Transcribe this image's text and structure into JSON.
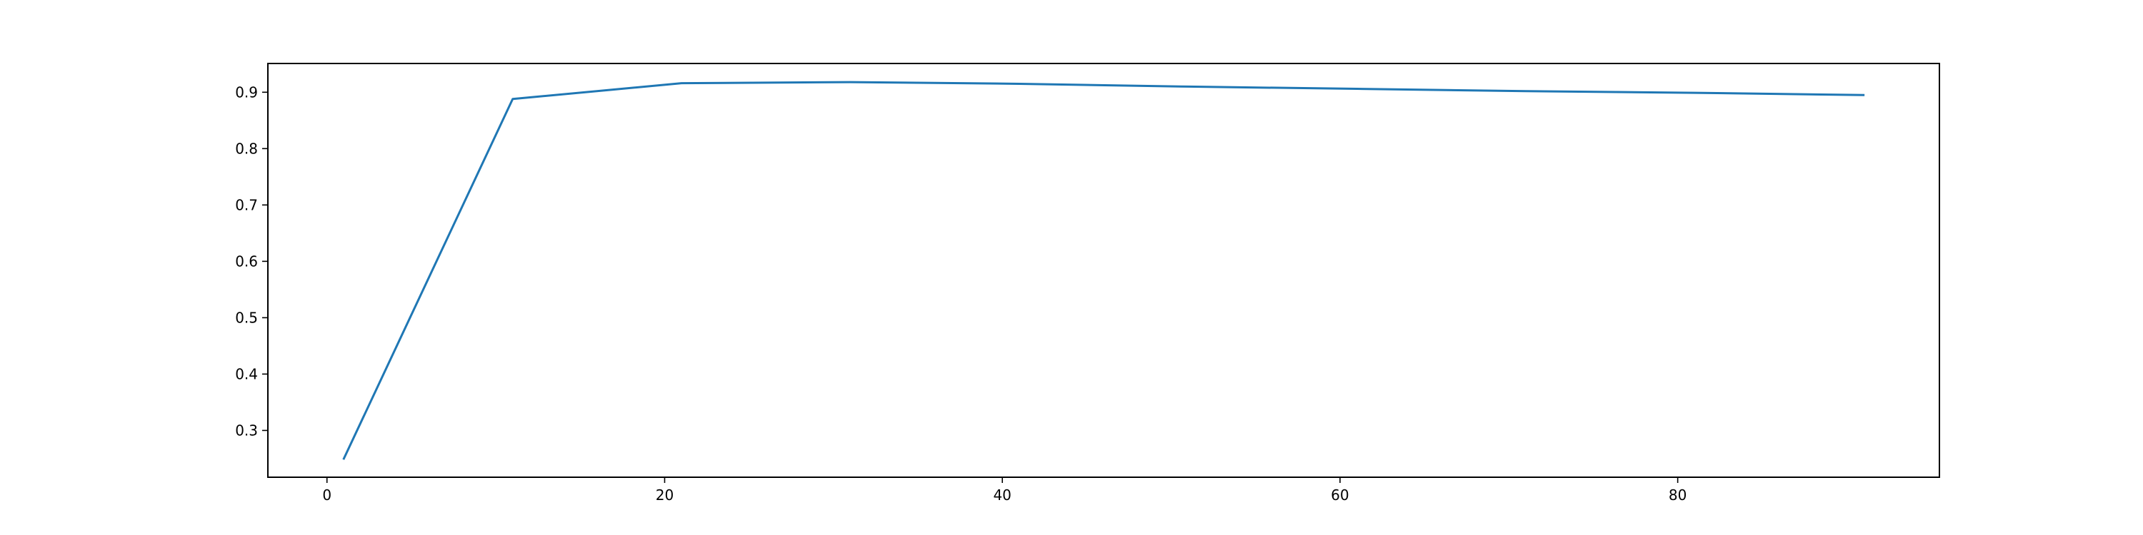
{
  "chart_data": {
    "type": "line",
    "title": "",
    "xlabel": "",
    "ylabel": "",
    "x": [
      1,
      11,
      21,
      31,
      41,
      51,
      61,
      71,
      81,
      91
    ],
    "series": [
      {
        "values": [
          0.25,
          0.888,
          0.916,
          0.918,
          0.915,
          0.91,
          0.906,
          0.902,
          0.899,
          0.895
        ],
        "color": "#1f77b4"
      }
    ],
    "xlim": [
      -3.5,
      95.5
    ],
    "ylim": [
      0.217,
      0.951
    ],
    "xticks": [
      0,
      20,
      40,
      60,
      80
    ],
    "yticks": [
      0.3,
      0.4,
      0.5,
      0.6,
      0.7,
      0.8,
      0.9
    ],
    "xtick_labels": [
      "0",
      "20",
      "40",
      "60",
      "80"
    ],
    "ytick_labels": [
      "0.3",
      "0.4",
      "0.5",
      "0.6",
      "0.7",
      "0.8",
      "0.9"
    ],
    "grid": false,
    "legend": "none"
  }
}
